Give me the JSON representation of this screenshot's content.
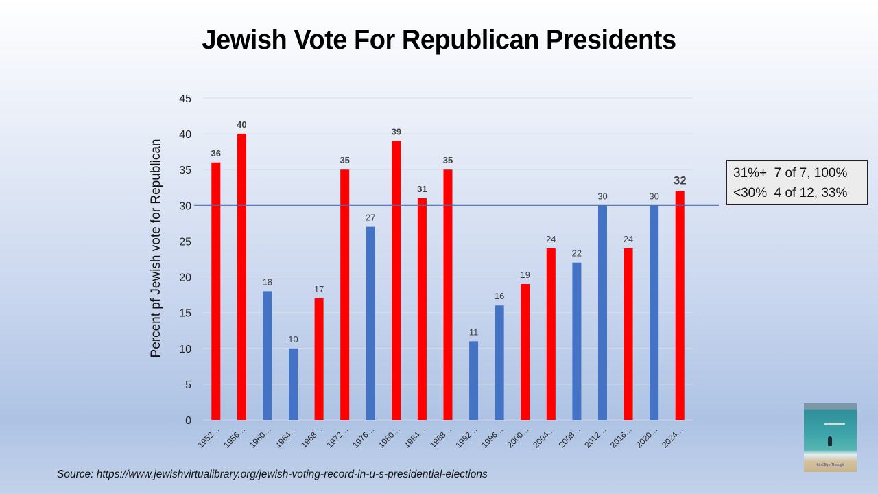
{
  "title": "Jewish Vote For Republican Presidents",
  "callout": {
    "lines": [
      "31%+  7 of 7, 100%",
      "<30%  4 of 12, 33%"
    ]
  },
  "source": "Source: https://www.jewishvirtualibrary.org/jewish-voting-record-in-u-s-presidential-elections",
  "photo": {
    "caption": "Kind Eye Through"
  },
  "colors": {
    "winner": "#ff0000",
    "loser": "#4472c4",
    "reference_line": "#4a6fb5",
    "grid": "#d9dde6"
  },
  "chart_data": {
    "type": "bar",
    "title": "Jewish Vote For Republican Presidents",
    "xlabel": "",
    "ylabel": "Percent pf Jewish vote for Republican",
    "ylim": [
      0,
      45
    ],
    "yticks": [
      0,
      5,
      10,
      15,
      20,
      25,
      30,
      35,
      40,
      45
    ],
    "grid": true,
    "reference_line": 30,
    "categories": [
      "1952…",
      "1956…",
      "1960…",
      "1964…",
      "1968…",
      "1972…",
      "1976…",
      "1980…",
      "1984…",
      "1988…",
      "1992…",
      "1996…",
      "2000…",
      "2004…",
      "2008…",
      "2012…",
      "2016…",
      "2020…",
      "2024…"
    ],
    "values": [
      36,
      40,
      18,
      10,
      17,
      35,
      27,
      39,
      31,
      35,
      11,
      16,
      19,
      24,
      22,
      30,
      24,
      30,
      32
    ],
    "bar_series": [
      "won",
      "won",
      "lost",
      "lost",
      "won",
      "won",
      "lost",
      "won",
      "won",
      "won",
      "lost",
      "lost",
      "won",
      "won",
      "lost",
      "lost",
      "won",
      "lost",
      "won"
    ],
    "label_style": [
      "bold",
      "bold",
      "normal",
      "normal",
      "normal",
      "bold",
      "normal",
      "bold",
      "bold",
      "bold",
      "normal",
      "normal",
      "normal",
      "normal",
      "normal",
      "normal",
      "normal",
      "normal",
      "large-bold"
    ],
    "legend": "none"
  }
}
